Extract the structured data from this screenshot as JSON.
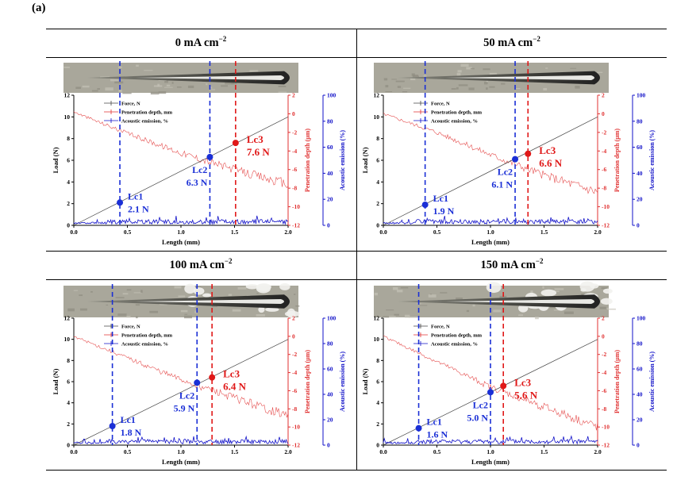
{
  "figure_label": "(a)",
  "panels": [
    {
      "title_main": "0 mA cm",
      "title_sup": "−2"
    },
    {
      "title_main": "50 mA cm",
      "title_sup": "−2"
    },
    {
      "title_main": "100 mA cm",
      "title_sup": "−2"
    },
    {
      "title_main": "150 mA cm",
      "title_sup": "−2"
    }
  ],
  "colors": {
    "force": "#444444",
    "depth": "#e03030",
    "acoustic": "#1010c8",
    "lc_blue": "#1a2fd6",
    "lc_red": "#e01818"
  },
  "chart_data": [
    {
      "type": "line",
      "xlabel": "Length (mm)",
      "ylabel": "Load (N)",
      "y2label": "Penetration depth (μm)",
      "y3label": "Acoustic emission (%)",
      "xlim": [
        0,
        2.0
      ],
      "ylim": [
        0,
        12
      ],
      "y2lim": [
        -12,
        2
      ],
      "y3lim": [
        0,
        100
      ],
      "xticks": [
        "0.0",
        "0.5",
        "1.0",
        "1.5",
        "2.0"
      ],
      "yticks": [
        "0",
        "2",
        "4",
        "6",
        "8",
        "10",
        "12"
      ],
      "y2ticks": [
        "-12",
        "-10",
        "-8",
        "-6",
        "-4",
        "-2",
        "0",
        "2"
      ],
      "y3ticks": [
        "0",
        "20",
        "40",
        "60",
        "80",
        "100"
      ],
      "legend": [
        "Force, N",
        "Penetration depth, mm",
        "Acoustic emission, %"
      ],
      "force": {
        "x": [
          0,
          2.0
        ],
        "y": [
          0,
          10
        ]
      },
      "depth": {
        "x": [
          0,
          0.5,
          1.0,
          1.5,
          2.0
        ],
        "y": [
          0.2,
          -2.1,
          -4.2,
          -6.0,
          -7.6
        ]
      },
      "critical_loads": [
        {
          "label": "Lc1",
          "value": "2.1 N",
          "x": 0.43,
          "load": 2.1,
          "color": "blue"
        },
        {
          "label": "Lc2",
          "value": "6.3 N",
          "x": 1.27,
          "load": 6.3,
          "color": "blue"
        },
        {
          "label": "Lc3",
          "value": "7.6 N",
          "x": 1.51,
          "load": 7.6,
          "color": "red"
        }
      ]
    },
    {
      "type": "line",
      "xlabel": "Length (mm)",
      "ylabel": "Load (N)",
      "y2label": "Penetration depth (μm)",
      "y3label": "Acoustic emission (%)",
      "xlim": [
        0,
        2.0
      ],
      "ylim": [
        0,
        12
      ],
      "y2lim": [
        -12,
        2
      ],
      "y3lim": [
        0,
        100
      ],
      "xticks": [
        "0.0",
        "0.5",
        "1.0",
        "1.5",
        "2.0"
      ],
      "yticks": [
        "0",
        "2",
        "4",
        "6",
        "8",
        "10",
        "12"
      ],
      "y2ticks": [
        "-12",
        "-10",
        "-8",
        "-6",
        "-4",
        "-2",
        "0",
        "2"
      ],
      "y3ticks": [
        "0",
        "20",
        "40",
        "60",
        "80",
        "100"
      ],
      "legend": [
        "Force, N",
        "Penetration depth, mm",
        "Acoustic emission, %"
      ],
      "force": {
        "x": [
          0,
          2.0
        ],
        "y": [
          0,
          10
        ]
      },
      "depth": {
        "x": [
          0,
          0.5,
          1.0,
          1.5,
          2.0
        ],
        "y": [
          0.0,
          -2.0,
          -4.4,
          -6.6,
          -8.4
        ]
      },
      "critical_loads": [
        {
          "label": "Lc1",
          "value": "1.9 N",
          "x": 0.39,
          "load": 1.9,
          "color": "blue"
        },
        {
          "label": "Lc2",
          "value": "6.1 N",
          "x": 1.23,
          "load": 6.1,
          "color": "blue"
        },
        {
          "label": "Lc3",
          "value": "6.6 N",
          "x": 1.35,
          "load": 6.6,
          "color": "red"
        }
      ]
    },
    {
      "type": "line",
      "xlabel": "Length (mm)",
      "ylabel": "Load (N)",
      "y2label": "Penetration depth (μm)",
      "y3label": "Acoustic emission (%)",
      "xlim": [
        0,
        2.0
      ],
      "ylim": [
        0,
        12
      ],
      "y2lim": [
        -12,
        2
      ],
      "y3lim": [
        0,
        100
      ],
      "xticks": [
        "0.0",
        "0.5",
        "1.0",
        "1.5",
        "2.0"
      ],
      "yticks": [
        "0",
        "2",
        "4",
        "6",
        "8",
        "10",
        "12"
      ],
      "y2ticks": [
        "-12",
        "-10",
        "-8",
        "-6",
        "-4",
        "-2",
        "0",
        "2"
      ],
      "y3ticks": [
        "0",
        "20",
        "40",
        "60",
        "80",
        "100"
      ],
      "legend": [
        "Force, N",
        "Penetration depth, mm",
        "Acoustic emission, %"
      ],
      "force": {
        "x": [
          0,
          2.0
        ],
        "y": [
          0,
          10
        ]
      },
      "depth": {
        "x": [
          0,
          0.5,
          1.0,
          1.5,
          2.0
        ],
        "y": [
          0.0,
          -2.4,
          -4.8,
          -6.8,
          -8.8
        ]
      },
      "critical_loads": [
        {
          "label": "Lc1",
          "value": "1.8 N",
          "x": 0.36,
          "load": 1.8,
          "color": "blue"
        },
        {
          "label": "Lc2",
          "value": "5.9 N",
          "x": 1.15,
          "load": 5.9,
          "color": "blue"
        },
        {
          "label": "Lc3",
          "value": "6.4 N",
          "x": 1.29,
          "load": 6.4,
          "color": "red"
        }
      ]
    },
    {
      "type": "line",
      "xlabel": "Length (mm)",
      "ylabel": "Load (N)",
      "y2label": "Penetration depth (μm)",
      "y3label": "Acoustic emission (%)",
      "xlim": [
        0,
        2.0
      ],
      "ylim": [
        0,
        12
      ],
      "y2lim": [
        -12,
        2
      ],
      "y3lim": [
        0,
        100
      ],
      "xticks": [
        "0.0",
        "0.5",
        "1.0",
        "1.5",
        "2.0"
      ],
      "yticks": [
        "0",
        "2",
        "4",
        "6",
        "8",
        "10",
        "12"
      ],
      "y2ticks": [
        "-12",
        "-10",
        "-8",
        "-6",
        "-4",
        "-2",
        "0",
        "2"
      ],
      "y3ticks": [
        "0",
        "20",
        "40",
        "60",
        "80",
        "100"
      ],
      "legend": [
        "Force, N",
        "Penetration depth, mm",
        "Acoustic emission, %"
      ],
      "force": {
        "x": [
          0,
          2.0
        ],
        "y": [
          0,
          10
        ]
      },
      "depth": {
        "x": [
          0,
          0.5,
          1.0,
          1.5,
          2.0
        ],
        "y": [
          0.0,
          -2.8,
          -5.6,
          -7.8,
          -10.0
        ]
      },
      "critical_loads": [
        {
          "label": "Lc1",
          "value": "1.6 N",
          "x": 0.33,
          "load": 1.6,
          "color": "blue"
        },
        {
          "label": "Lc2",
          "value": "5.0 N",
          "x": 1.0,
          "load": 5.0,
          "color": "blue"
        },
        {
          "label": "Lc3",
          "value": "5.6 N",
          "x": 1.12,
          "load": 5.6,
          "color": "red"
        }
      ]
    }
  ]
}
